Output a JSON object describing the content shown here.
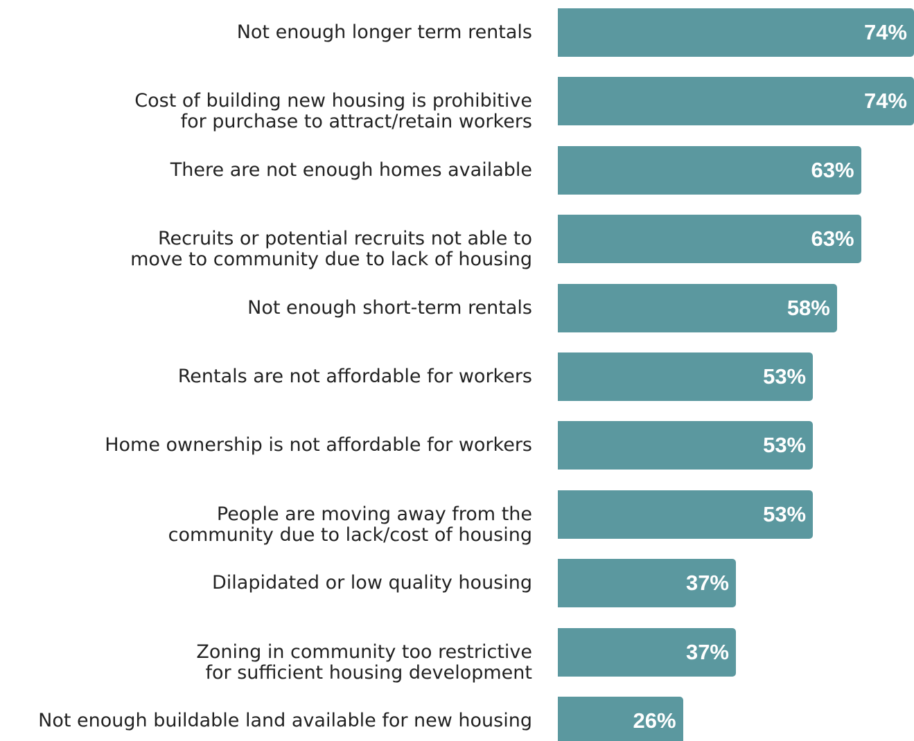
{
  "chart_data": {
    "type": "bar",
    "orientation": "horizontal",
    "color": "#5b989f",
    "categories": [
      "Not enough longer term rentals",
      "Cost of building new housing is prohibitive\nfor purchase to attract/retain workers",
      "There are not enough homes available",
      "Recruits or potential recruits not able to\nmove to community due to lack of housing",
      "Not enough short-term rentals",
      "Rentals are not affordable for workers",
      "Home ownership is not affordable for workers",
      "People are moving away from the\ncommunity due to lack/cost of housing",
      "Dilapidated or low quality housing",
      "Zoning in community too restrictive\nfor sufficient housing development",
      "Not enough buildable land available for new housing"
    ],
    "values": [
      74,
      74,
      63,
      63,
      58,
      53,
      53,
      53,
      37,
      37,
      26
    ],
    "value_labels": [
      "74%",
      "74%",
      "63%",
      "63%",
      "58%",
      "53%",
      "53%",
      "53%",
      "37%",
      "37%",
      "26%"
    ],
    "xlim": [
      0,
      74
    ]
  }
}
